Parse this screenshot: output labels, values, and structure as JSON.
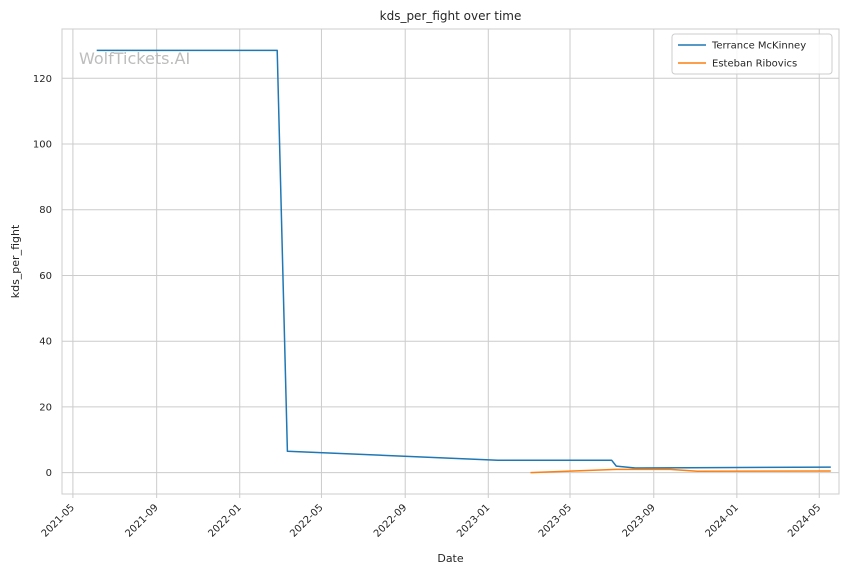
{
  "chart_data": {
    "type": "line",
    "title": "kds_per_fight over time",
    "xlabel": "Date",
    "ylabel": "kds_per_fight",
    "watermark": "WolfTickets.AI",
    "x_ticks": [
      "2021-05",
      "2021-09",
      "2022-01",
      "2022-05",
      "2022-09",
      "2023-01",
      "2023-05",
      "2023-09",
      "2024-01",
      "2024-05"
    ],
    "y_ticks": [
      "0",
      "20",
      "40",
      "60",
      "80",
      "100",
      "120"
    ],
    "xlim": [
      "2021-04-15",
      "2024-05-30"
    ],
    "ylim": [
      -6.5,
      135
    ],
    "grid": true,
    "legend_position": "top-right",
    "series": [
      {
        "name": "Terrance McKinney",
        "color": "#1f77b4",
        "points": [
          [
            "2021-06-05",
            128.5
          ],
          [
            "2022-02-25",
            128.5
          ],
          [
            "2022-03-12",
            6.5
          ],
          [
            "2023-01-15",
            3.8
          ],
          [
            "2023-07-01",
            3.8
          ],
          [
            "2023-07-08",
            2.0
          ],
          [
            "2023-08-05",
            1.4
          ],
          [
            "2024-05-18",
            1.7
          ]
        ]
      },
      {
        "name": "Esteban Ribovics",
        "color": "#ff7f0e",
        "points": [
          [
            "2023-03-04",
            0.0
          ],
          [
            "2023-07-08",
            1.0
          ],
          [
            "2023-09-25",
            1.0
          ],
          [
            "2023-11-04",
            0.4
          ],
          [
            "2024-05-18",
            0.5
          ]
        ]
      }
    ]
  }
}
